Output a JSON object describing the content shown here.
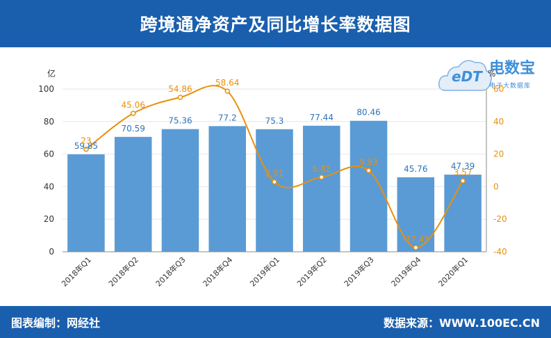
{
  "header": {
    "title": "跨境通净资产及同比增长率数据图"
  },
  "footer": {
    "credit": "图表编制：网经社",
    "source": "数据来源：WWW.100EC.CN"
  },
  "logo": {
    "edt": "eDT",
    "main": "电数宝",
    "sub": "电子大数据库"
  },
  "colors": {
    "bar": "#5b9bd5",
    "line": "#e8900c",
    "header_bg": "#1a5fad"
  },
  "chart_data": {
    "type": "bar",
    "categories": [
      "2018年Q1",
      "2018年Q2",
      "2018年Q3",
      "2018年Q4",
      "2019年Q1",
      "2019年Q2",
      "2019年Q3",
      "2019年Q4",
      "2020年Q1"
    ],
    "series": [
      {
        "values": [
          59.85,
          70.59,
          75.36,
          77.2,
          75.3,
          77.44,
          80.46,
          45.76,
          47.39
        ],
        "axis": "left",
        "type": "bar"
      },
      {
        "values": [
          23,
          45.06,
          54.86,
          58.64,
          2.91,
          5.82,
          9.93,
          -37.43,
          3.57
        ],
        "axis": "right",
        "type": "line"
      }
    ],
    "y_left": {
      "label": "亿",
      "ticks": [
        0,
        20,
        40,
        60,
        80,
        100
      ],
      "range": [
        0,
        100
      ]
    },
    "y_right": {
      "label": "%",
      "ticks": [
        -40,
        -20,
        0,
        20,
        40,
        60
      ],
      "range": [
        -40,
        60
      ]
    },
    "grid": true
  }
}
